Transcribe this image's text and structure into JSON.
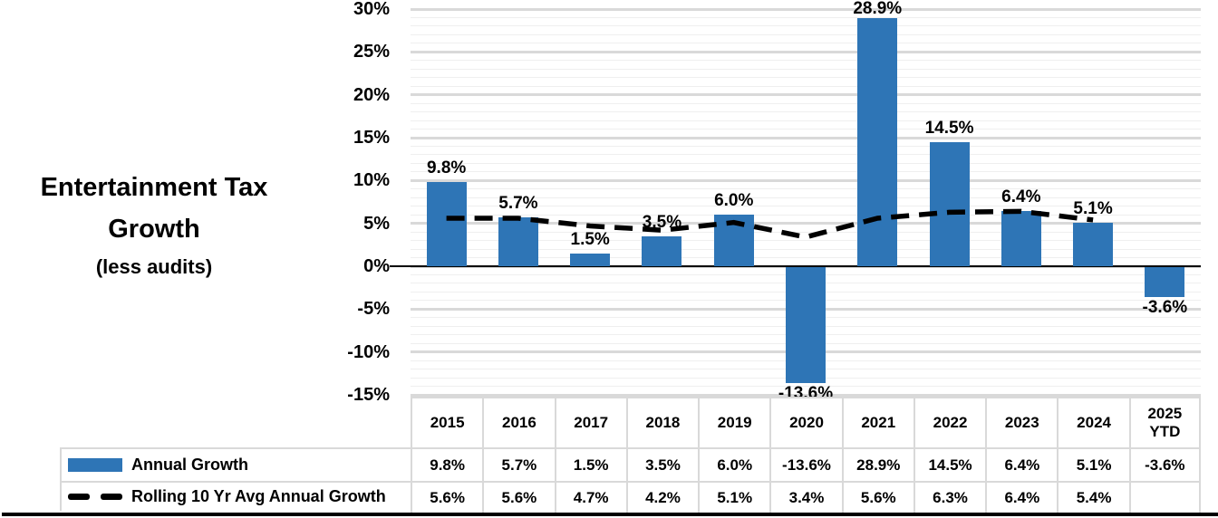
{
  "title": {
    "line1": "Entertainment Tax",
    "line2": "Growth",
    "line3": "(less audits)"
  },
  "chart_data": {
    "type": "bar",
    "title": "Entertainment Tax Growth (less audits)",
    "categories": [
      "2015",
      "2016",
      "2017",
      "2018",
      "2019",
      "2020",
      "2021",
      "2022",
      "2023",
      "2024",
      "2025 YTD"
    ],
    "series": [
      {
        "name": "Annual Growth",
        "type": "bar",
        "color": "#2E75B6",
        "values": [
          9.8,
          5.7,
          1.5,
          3.5,
          6.0,
          -13.6,
          28.9,
          14.5,
          6.4,
          5.1,
          -3.6
        ],
        "labels": [
          "9.8%",
          "5.7%",
          "1.5%",
          "3.5%",
          "6.0%",
          "-13.6%",
          "28.9%",
          "14.5%",
          "6.4%",
          "5.1%",
          "-3.6%"
        ]
      },
      {
        "name": "Rolling 10 Yr Avg Annual Growth",
        "type": "line",
        "style": "dashed",
        "color": "#000000",
        "values": [
          5.6,
          5.6,
          4.7,
          4.2,
          5.1,
          3.4,
          5.6,
          6.3,
          6.4,
          5.4,
          null
        ],
        "labels": [
          "5.6%",
          "5.6%",
          "4.7%",
          "4.2%",
          "5.1%",
          "3.4%",
          "5.6%",
          "6.3%",
          "6.4%",
          "5.4%",
          ""
        ]
      }
    ],
    "ylim": [
      -15,
      30
    ],
    "ytick_values": [
      30,
      25,
      20,
      15,
      10,
      5,
      0,
      -5,
      -10,
      -15
    ],
    "ytick_labels": [
      "30%",
      "25%",
      "20%",
      "15%",
      "10%",
      "5%",
      "0%",
      "-5%",
      "-10%",
      "-15%"
    ],
    "grid": {
      "major_step": 5,
      "minor_step": 1,
      "on": true
    },
    "legend_position": "bottom-left-table"
  },
  "colors": {
    "bar": "#2E75B6",
    "line": "#000000",
    "grid_major": "#D9D9D9",
    "grid_minor": "#EFEFEF",
    "axis": "#000000",
    "table_border": "#D9D9D9",
    "text": "#000000"
  }
}
